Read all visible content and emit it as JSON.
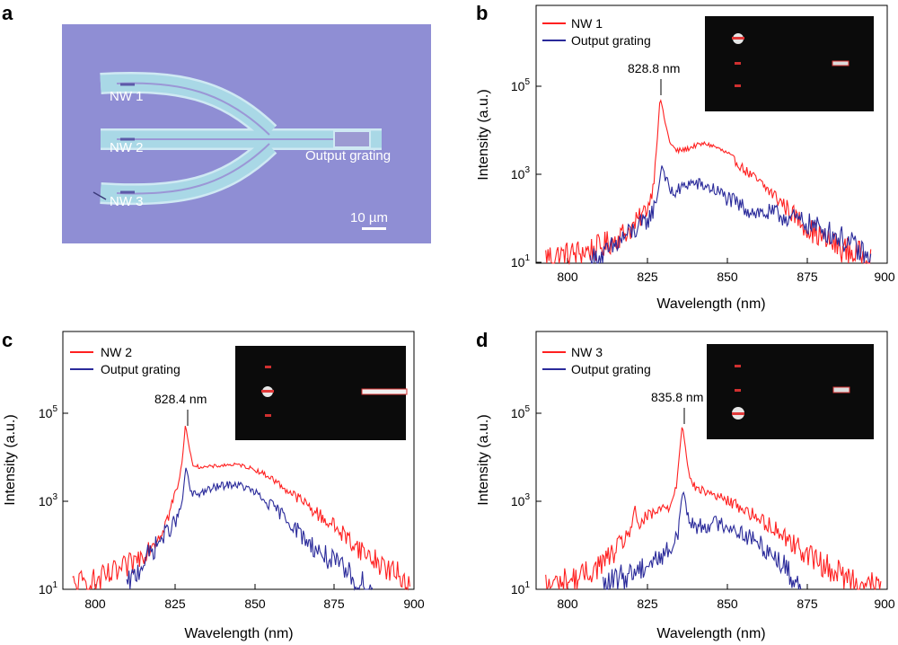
{
  "colors": {
    "nw_line": "#ff2020",
    "grating_line": "#2a2a9a",
    "micrograph_bg": "#8f8ed4",
    "waveguide_fill": "#a9d8e6",
    "waveguide_edge": "#cfe9f3"
  },
  "panel_a": {
    "letter": "a",
    "labels": {
      "nw1": "NW 1",
      "nw2": "NW 2",
      "nw3": "NW 3",
      "grating": "Output grating"
    },
    "scale_bar": "10 µm"
  },
  "chart_data": [
    {
      "id": "b",
      "letter": "b",
      "type": "line",
      "xlabel": "Wavelength (nm)",
      "ylabel": "Intensity (a.u.)",
      "xlim": [
        790,
        900
      ],
      "ylim": [
        10,
        5000000
      ],
      "yscale": "log",
      "xticks": [
        800,
        825,
        850,
        875,
        900
      ],
      "yticks": [
        {
          "value": 10,
          "base": "10",
          "exp": "1"
        },
        {
          "value": 1000,
          "base": "10",
          "exp": "3"
        },
        {
          "value": 100000,
          "base": "10",
          "exp": "5"
        }
      ],
      "legend_placement": "top-left",
      "annotation": {
        "text": "828.8 nm",
        "x": 828.8
      },
      "peak_pos": 828.8,
      "series": [
        {
          "name": "NW 1",
          "color": "#ff2020",
          "x": [
            793,
            800,
            810,
            815,
            820,
            823,
            825,
            826,
            827,
            828,
            828.8,
            829.5,
            830.5,
            832,
            834,
            837,
            840,
            843,
            846,
            850,
            855,
            860,
            865,
            870,
            875,
            880,
            885,
            890,
            895
          ],
          "y": [
            14,
            15,
            22,
            35,
            60,
            110,
            180,
            300,
            800,
            6000,
            45000,
            30000,
            12000,
            4500,
            3000,
            3300,
            4000,
            4400,
            3800,
            2600,
            1200,
            600,
            300,
            130,
            60,
            35,
            22,
            16,
            12
          ]
        },
        {
          "name": "Output grating",
          "color": "#2a2a9a",
          "x": [
            807,
            812,
            815,
            818,
            821,
            824,
            826,
            827.5,
            828.5,
            829.3,
            830.2,
            831.5,
            833,
            835,
            838,
            841,
            844,
            847,
            850,
            853,
            856,
            860,
            865,
            870,
            875,
            880,
            885,
            890,
            895
          ],
          "y": [
            10,
            15,
            25,
            40,
            55,
            75,
            120,
            200,
            500,
            1500,
            1000,
            450,
            350,
            420,
            600,
            550,
            480,
            380,
            270,
            200,
            160,
            130,
            120,
            100,
            75,
            55,
            38,
            22,
            10
          ]
        }
      ]
    },
    {
      "id": "c",
      "letter": "c",
      "type": "line",
      "xlabel": "Wavelength (nm)",
      "ylabel": "Intensity (a.u.)",
      "xlim": [
        790,
        900
      ],
      "ylim": [
        10,
        5000000
      ],
      "yscale": "log",
      "xticks": [
        800,
        825,
        850,
        875,
        900
      ],
      "yticks": [
        {
          "value": 10,
          "base": "10",
          "exp": "1"
        },
        {
          "value": 1000,
          "base": "10",
          "exp": "3"
        },
        {
          "value": 100000,
          "base": "10",
          "exp": "5"
        }
      ],
      "legend_placement": "top-left",
      "annotation": {
        "text": "828.4 nm",
        "x": 828.4
      },
      "peak_pos": 828.4,
      "series": [
        {
          "name": "NW 2",
          "color": "#ff2020",
          "x": [
            793,
            800,
            805,
            810,
            815,
            820,
            823,
            825,
            826.5,
            827.5,
            828.4,
            829.2,
            830.5,
            832,
            835,
            840,
            843,
            846,
            850,
            855,
            860,
            865,
            870,
            875,
            880,
            885,
            890,
            895,
            899
          ],
          "y": [
            12,
            14,
            20,
            30,
            60,
            150,
            400,
            1200,
            2500,
            8000,
            45000,
            20000,
            6000,
            5200,
            5000,
            5500,
            5700,
            5500,
            4500,
            3000,
            1600,
            900,
            450,
            250,
            120,
            60,
            35,
            20,
            14
          ]
        },
        {
          "name": "Output grating",
          "color": "#2a2a9a",
          "x": [
            810,
            813,
            815,
            818,
            820,
            823,
            825,
            826.5,
            827.5,
            828.5,
            829.3,
            830.2,
            832,
            835,
            838,
            841,
            844,
            847,
            850,
            853,
            856,
            860,
            865,
            870,
            875,
            880,
            884,
            887
          ],
          "y": [
            10,
            22,
            40,
            70,
            110,
            200,
            300,
            450,
            1000,
            5000,
            3000,
            1200,
            1300,
            1500,
            1800,
            2000,
            2100,
            1800,
            1400,
            900,
            650,
            380,
            150,
            70,
            38,
            20,
            12,
            10
          ]
        }
      ]
    },
    {
      "id": "d",
      "letter": "d",
      "type": "line",
      "xlabel": "Wavelength (nm)",
      "ylabel": "Intensity (a.u.)",
      "xlim": [
        790,
        900
      ],
      "ylim": [
        10,
        5000000
      ],
      "yscale": "log",
      "xticks": [
        800,
        825,
        850,
        875,
        900
      ],
      "yticks": [
        {
          "value": 10,
          "base": "10",
          "exp": "1"
        },
        {
          "value": 1000,
          "base": "10",
          "exp": "3"
        },
        {
          "value": 100000,
          "base": "10",
          "exp": "5"
        }
      ],
      "legend_placement": "top-left",
      "annotation": {
        "text": "835.8 nm",
        "x": 835.8
      },
      "peak_pos": 835.8,
      "series": [
        {
          "name": "NW 3",
          "color": "#ff2020",
          "x": [
            793,
            800,
            805,
            810,
            815,
            818,
            820,
            821,
            822,
            824,
            827,
            830,
            832,
            834,
            835,
            835.8,
            836.7,
            838,
            840,
            845,
            850,
            855,
            860,
            865,
            870,
            875,
            880,
            885,
            890,
            895,
            898
          ],
          "y": [
            12,
            15,
            20,
            35,
            70,
            140,
            250,
            500,
            260,
            350,
            480,
            620,
            700,
            2000,
            12000,
            45000,
            15000,
            3000,
            1700,
            1300,
            900,
            600,
            350,
            220,
            110,
            60,
            35,
            22,
            15,
            12,
            10
          ]
        },
        {
          "name": "Output grating",
          "color": "#2a2a9a",
          "x": [
            811,
            815,
            818,
            822,
            826,
            830,
            833,
            834.5,
            835.3,
            836,
            836.8,
            838,
            840,
            843,
            846,
            850,
            853,
            856,
            860,
            863,
            866,
            870,
            873
          ],
          "y": [
            10,
            15,
            20,
            28,
            40,
            60,
            90,
            200,
            700,
            1500,
            900,
            300,
            250,
            260,
            290,
            260,
            200,
            150,
            100,
            70,
            45,
            20,
            10
          ]
        }
      ]
    }
  ]
}
